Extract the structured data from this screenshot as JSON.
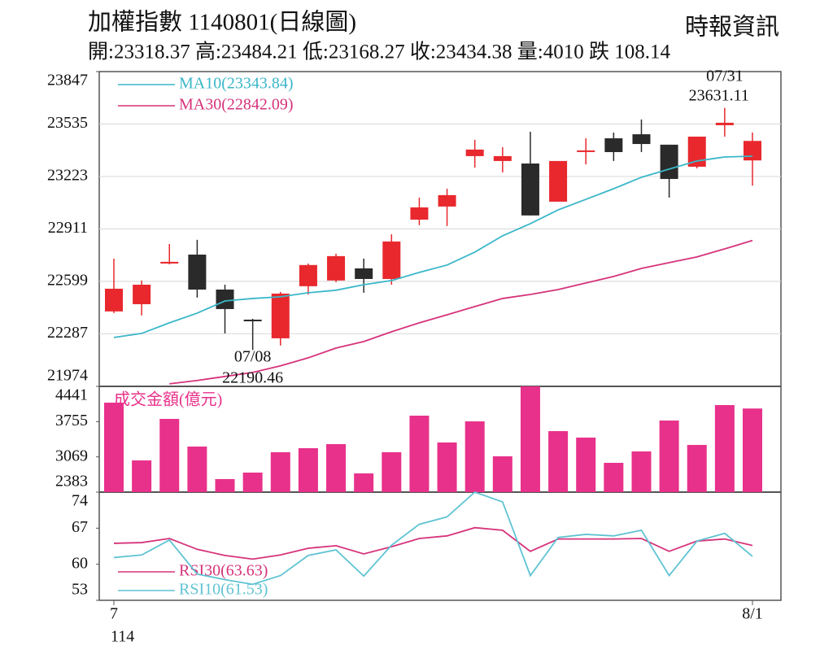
{
  "chart_data": [
    {
      "type": "candlestick",
      "title": "加權指數 1140801(日線圖)",
      "subtitle": "開:23318.37 高:23484.21 低:23168.27 收:23434.38 量:4010 跌 108.14",
      "source": "時報資訊",
      "open": [
        22420,
        22463,
        22705,
        22758,
        22550,
        22371,
        22260,
        22570,
        22604,
        22676,
        22613,
        22966,
        23044,
        23344,
        23315,
        23300,
        23073,
        23373,
        23450,
        23474,
        23412,
        23281,
        23528,
        23318.37
      ],
      "high": [
        22734,
        22604,
        22821,
        22846,
        22579,
        22376,
        22536,
        22705,
        22763,
        22734,
        22879,
        23097,
        23150,
        23441,
        23397,
        23489,
        23315,
        23450,
        23484,
        23562,
        23412,
        23460,
        23631.11,
        23484.21
      ],
      "low": [
        22410,
        22396,
        22700,
        22502,
        22289,
        22190.46,
        22217,
        22521,
        22594,
        22531,
        22579,
        22933,
        22928,
        23276,
        23247,
        22991,
        23073,
        23295,
        23315,
        23368,
        23097,
        23271,
        23460,
        23168.27
      ],
      "close": [
        22555,
        22579,
        22715,
        22550,
        22434,
        22362,
        22526,
        22696,
        22749,
        22613,
        22836,
        23039,
        23112,
        23383,
        23344,
        22991,
        23315,
        23378,
        23368,
        23416,
        23208,
        23460,
        23542.52,
        23434.38
      ],
      "up_color": "#e8282d",
      "down_color": "#2a2a2a",
      "max_label": "07/31",
      "min_label": "07/08",
      "series": [
        {
          "name": "MA10(23343.84)",
          "color": "#3ab7c9",
          "values": [
            22265,
            22289,
            22352,
            22410,
            22482,
            22497,
            22507,
            22531,
            22546,
            22579,
            22604,
            22652,
            22696,
            22773,
            22870,
            22942,
            23024,
            23087,
            23150,
            23218,
            23267,
            23315,
            23339,
            23343.84
          ]
        },
        {
          "name": "MA30(22842.09)",
          "color": "#d6337a",
          "values": [
            null,
            null,
            21989,
            22009,
            22033,
            22057,
            22096,
            22144,
            22202,
            22241,
            22299,
            22352,
            22400,
            22449,
            22497,
            22521,
            22550,
            22589,
            22628,
            22676,
            22710,
            22744,
            22792,
            22842.09
          ]
        }
      ],
      "ylim": [
        21974,
        23847
      ],
      "yticks": [
        21974,
        22287,
        22599,
        22911,
        23223,
        23535,
        23847
      ],
      "grid": true
    },
    {
      "type": "bar",
      "title": "成交金額(億元)",
      "color": "#e8318a",
      "values": [
        4124,
        3000,
        3808,
        3270,
        2637,
        2763,
        3159,
        3238,
        3317,
        2747,
        3159,
        3871,
        3349,
        3760,
        3080,
        4441,
        3570,
        3444,
        2953,
        3175,
        3776,
        3301,
        4077,
        4010
      ],
      "ylim": [
        2383,
        4441
      ],
      "yticks": [
        2383,
        3069,
        3755,
        4441
      ],
      "grid": false
    },
    {
      "type": "line",
      "categories": [
        "7",
        null,
        null,
        null,
        null,
        null,
        null,
        null,
        null,
        null,
        null,
        null,
        null,
        null,
        null,
        null,
        null,
        null,
        null,
        null,
        null,
        null,
        null,
        "8/1"
      ],
      "x_sublabel": "114",
      "series": [
        {
          "name": "RSI30(63.63)",
          "color": "#d6337a",
          "values": [
            64.06,
            64.2,
            65.0,
            62.9,
            61.7,
            61.0,
            61.8,
            63.1,
            63.6,
            62.0,
            63.4,
            65.0,
            65.5,
            67.1,
            66.6,
            62.5,
            64.9,
            64.9,
            64.9,
            65.0,
            62.5,
            64.5,
            64.9,
            63.63
          ]
        },
        {
          "name": "RSI10(61.53)",
          "color": "#5fc3d3",
          "values": [
            61.3,
            61.8,
            64.7,
            58.1,
            57.0,
            56.1,
            57.8,
            61.7,
            62.8,
            57.7,
            63.7,
            67.75,
            69.2,
            74.0,
            72.1,
            57.8,
            65.2,
            65.8,
            65.5,
            66.6,
            57.8,
            64.5,
            66.0,
            61.53
          ]
        }
      ],
      "ylim": [
        53,
        74
      ],
      "yticks": [
        53,
        60,
        67,
        74
      ],
      "grid": false
    }
  ]
}
